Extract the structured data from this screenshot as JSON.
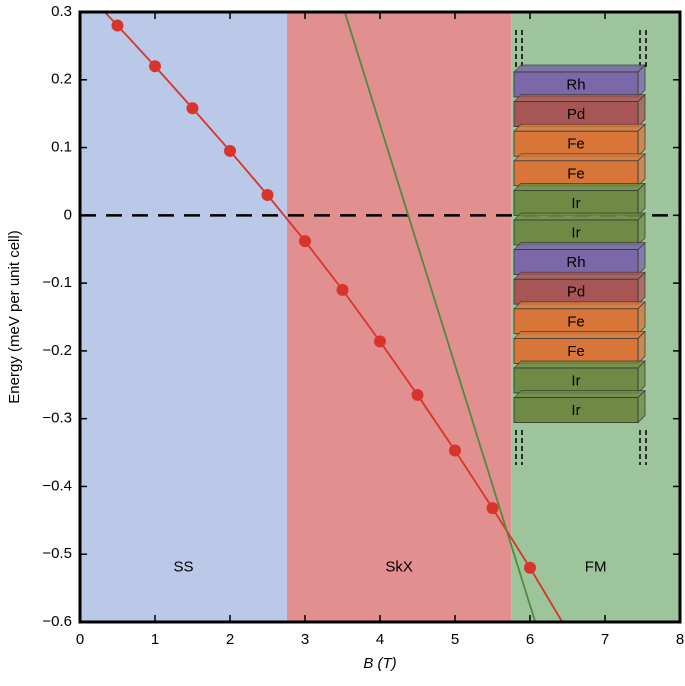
{
  "chart_data": {
    "type": "line",
    "ylabel": "Energy (meV per unit cell)",
    "xlabel": "B (T)",
    "xlim": [
      0,
      8
    ],
    "ylim": [
      -0.6,
      0.3
    ],
    "xticks": [
      0,
      1,
      2,
      3,
      4,
      5,
      6,
      7,
      8
    ],
    "yticks": [
      {
        "value": -0.6,
        "label": "−0.6"
      },
      {
        "value": -0.5,
        "label": "−0.5"
      },
      {
        "value": -0.4,
        "label": "−0.4"
      },
      {
        "value": -0.3,
        "label": "−0.3"
      },
      {
        "value": -0.2,
        "label": "−0.2"
      },
      {
        "value": -0.1,
        "label": "−0.1"
      },
      0,
      0.1,
      0.2,
      0.3
    ],
    "reference_line": 0,
    "regions": [
      {
        "label": "SS",
        "from": 0,
        "to": 2.76,
        "color": "#b9c9e7"
      },
      {
        "label": "SkX",
        "from": 2.76,
        "to": 5.75,
        "color": "#e28f8f"
      },
      {
        "label": "FM",
        "from": 5.75,
        "to": 8,
        "color": "#9dc49a"
      }
    ],
    "region_label_y": -0.52,
    "series": [
      {
        "color": "#d9342b",
        "markers": false,
        "x": [
          0.33,
          0.5,
          1,
          1.5,
          2,
          2.5,
          3,
          3.5,
          4,
          4.5,
          5,
          5.5,
          6,
          6.43
        ],
        "values": [
          0.3,
          0.28,
          0.22,
          0.158,
          0.095,
          0.03,
          -0.038,
          -0.11,
          -0.186,
          -0.265,
          -0.347,
          -0.432,
          -0.52,
          -0.6
        ]
      },
      {
        "color": "#d9342b",
        "markers": true,
        "x": [
          0.5,
          1,
          1.5,
          2,
          2.5,
          3,
          3.5,
          4,
          4.5,
          5,
          5.5,
          6
        ],
        "values": [
          0.28,
          0.22,
          0.158,
          0.095,
          0.03,
          -0.038,
          -0.11,
          -0.186,
          -0.265,
          -0.347,
          -0.432,
          -0.52
        ]
      },
      {
        "color": "#4f8c3f",
        "markers": false,
        "x": [
          3.53,
          6.07
        ],
        "values": [
          0.3,
          -0.6
        ]
      }
    ],
    "inset": {
      "layers": [
        "Rh",
        "Pd",
        "Fe",
        "Fe",
        "Ir",
        "Ir",
        "Rh",
        "Pd",
        "Fe",
        "Fe",
        "Ir",
        "Ir"
      ],
      "layer_colors": {
        "Rh": "#7a68a8",
        "Pd": "#a85555",
        "Fe": "#d8763a",
        "Ir": "#6e8a44"
      }
    }
  }
}
